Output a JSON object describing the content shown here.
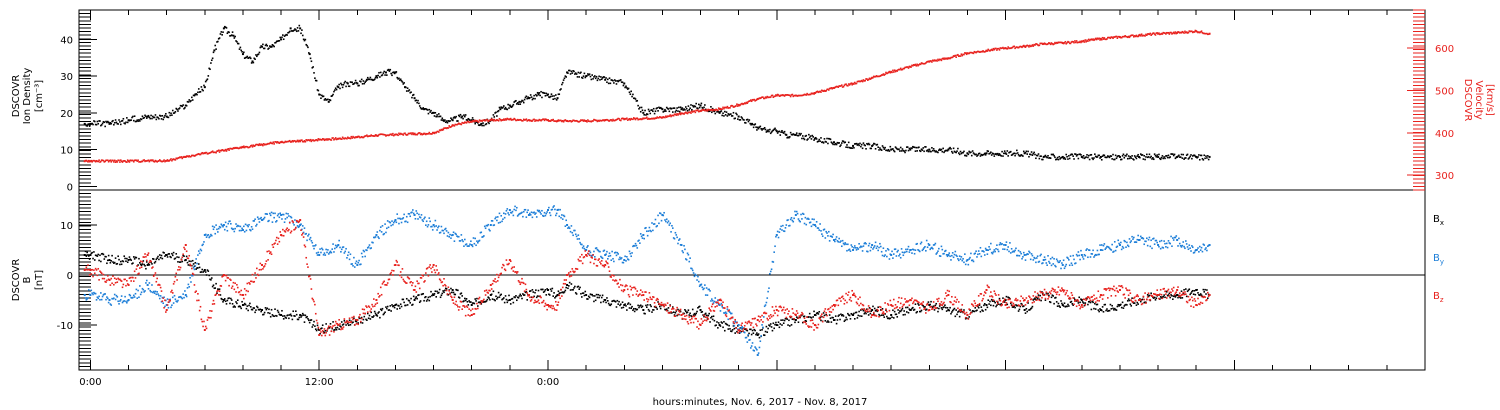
{
  "chart_data": [
    {
      "type": "scatter",
      "panel": "top",
      "x_unit": "hours since 2017-11-06 00:00",
      "ylabel_left": [
        "DSCOVR",
        "Ion Density",
        "[cm⁻³]"
      ],
      "ylabel_right": [
        "DSCOVR",
        "Velocity",
        "[km/s]"
      ],
      "ylim_left": [
        -1,
        48
      ],
      "yticks_left": [
        "0",
        "10",
        "20",
        "30",
        "40"
      ],
      "ylim_right": [
        265,
        690
      ],
      "yticks_right": [
        "300",
        "400",
        "500",
        "600"
      ],
      "series": [
        {
          "name": "Ion Density",
          "axis": "left",
          "color": "#000000",
          "x": [
            -0.3,
            0,
            1,
            2,
            3,
            4,
            5,
            5.5,
            6,
            6.5,
            7,
            7.5,
            8,
            8.5,
            9,
            9.5,
            10,
            10.5,
            11,
            11.5,
            12,
            12.5,
            13,
            13.5,
            14,
            14.5,
            15,
            15.5,
            16,
            16.5,
            17,
            17.5,
            18,
            18.5,
            19,
            19.5,
            20,
            20.5,
            21,
            21.5,
            22,
            22.5,
            23,
            23.5,
            24,
            24.5,
            25,
            26,
            27,
            28,
            29,
            30,
            31,
            32,
            33,
            34,
            34.7,
            35,
            35.5,
            36,
            36.5,
            37,
            38,
            39,
            40,
            41,
            42,
            43,
            44,
            45,
            46,
            47,
            48,
            49,
            50,
            51,
            52,
            53,
            54,
            55,
            56,
            57,
            58,
            58.7
          ],
          "y": [
            17,
            17,
            17,
            18,
            19,
            19,
            22,
            25,
            27,
            37,
            43,
            41,
            36,
            34,
            38,
            38,
            40,
            43,
            43,
            36,
            25,
            23,
            27,
            28,
            28,
            29,
            30,
            31,
            31,
            27,
            24,
            21,
            20,
            18,
            18,
            19,
            18,
            17,
            18,
            21,
            22,
            23,
            24,
            25,
            25,
            24,
            31,
            30,
            29,
            28,
            20,
            21,
            21,
            22,
            20,
            19,
            17,
            16,
            15,
            15,
            14,
            14,
            13,
            12,
            11,
            11,
            10,
            10,
            10,
            10,
            9,
            9,
            9,
            9,
            8,
            8,
            8,
            8,
            8,
            8,
            8,
            8,
            8,
            8
          ]
        },
        {
          "name": "Velocity",
          "axis": "right",
          "color": "#e8221e",
          "x": [
            -0.3,
            0,
            2,
            4,
            5,
            6,
            7,
            8,
            9,
            10,
            11,
            12,
            13,
            14,
            15,
            16,
            17,
            17.5,
            18,
            18.5,
            19,
            20,
            21,
            22,
            23,
            24,
            24.5,
            25,
            26,
            27,
            28,
            29,
            30,
            31,
            32,
            33,
            34,
            35,
            36,
            37,
            38,
            39,
            40,
            41,
            42,
            43,
            44,
            45,
            46,
            47,
            48,
            49,
            50,
            51,
            52,
            53,
            54,
            55,
            56,
            57,
            58,
            58.7
          ],
          "y": [
            333,
            333,
            333,
            334,
            343,
            352,
            358,
            366,
            372,
            378,
            380,
            384,
            386,
            390,
            394,
            396,
            398,
            398,
            400,
            408,
            418,
            426,
            430,
            432,
            430,
            430,
            428,
            428,
            428,
            430,
            432,
            434,
            436,
            446,
            452,
            456,
            466,
            480,
            488,
            488,
            494,
            506,
            516,
            530,
            544,
            556,
            568,
            576,
            588,
            594,
            600,
            604,
            610,
            612,
            616,
            622,
            626,
            630,
            634,
            636,
            640,
            634
          ]
        }
      ]
    },
    {
      "type": "scatter",
      "panel": "bottom",
      "x_unit": "hours since 2017-11-06 00:00",
      "ylabel": [
        "DSCOVR",
        "B",
        "[nT]"
      ],
      "ylim": [
        -19,
        17
      ],
      "yticks": [
        "-10",
        "0",
        "10"
      ],
      "zero_line": true,
      "series": [
        {
          "name": "Bx",
          "color": "#000000",
          "x": [
            -0.3,
            0,
            1,
            2,
            3,
            4,
            5,
            6,
            7,
            8,
            9,
            10,
            11,
            12,
            13,
            14,
            15,
            16,
            17,
            18,
            19,
            20,
            21,
            22,
            23,
            24,
            24.5,
            25,
            26,
            27,
            28,
            29,
            30,
            31,
            32,
            33,
            34,
            35,
            36,
            37,
            38,
            39,
            40,
            41,
            42,
            43,
            44,
            45,
            46,
            47,
            48,
            49,
            50,
            51,
            52,
            53,
            54,
            55,
            56,
            57,
            58,
            58.7
          ],
          "y": [
            4,
            4,
            3,
            3,
            2,
            4,
            3,
            1,
            -5,
            -6,
            -7,
            -8,
            -8,
            -11,
            -10,
            -9,
            -8,
            -6,
            -5,
            -4,
            -3,
            -6,
            -4,
            -5,
            -4,
            -3,
            -4,
            -2,
            -4,
            -5,
            -6,
            -7,
            -6,
            -8,
            -7,
            -10,
            -11,
            -12,
            -10,
            -9,
            -8,
            -9,
            -8,
            -7,
            -8,
            -7,
            -6,
            -7,
            -8,
            -6,
            -5,
            -7,
            -4,
            -6,
            -5,
            -7,
            -6,
            -5,
            -4,
            -4,
            -3,
            -4
          ]
        },
        {
          "name": "By",
          "color": "#1e7fd8",
          "x": [
            -0.3,
            0,
            1,
            2,
            3,
            4,
            5,
            6,
            7,
            8,
            9,
            10,
            11,
            12,
            13,
            14,
            15,
            16,
            17,
            18,
            19,
            20,
            21,
            22,
            23,
            24,
            24.5,
            25,
            26,
            27,
            28,
            29,
            30,
            31,
            32,
            33,
            34,
            35,
            36,
            37,
            38,
            39,
            40,
            41,
            42,
            43,
            44,
            45,
            46,
            47,
            48,
            49,
            50,
            51,
            52,
            53,
            54,
            55,
            56,
            57,
            58,
            58.7
          ],
          "y": [
            -4,
            -4,
            -5,
            -5,
            -2,
            -6,
            -4,
            8,
            10,
            9,
            11,
            12,
            10,
            4,
            6,
            2,
            8,
            11,
            12,
            10,
            8,
            6,
            10,
            13,
            12,
            13,
            13,
            10,
            5,
            4,
            3,
            8,
            12,
            6,
            -2,
            -6,
            -10,
            -16,
            8,
            12,
            10,
            7,
            5,
            6,
            4,
            5,
            6,
            4,
            3,
            5,
            6,
            4,
            3,
            2,
            4,
            5,
            6,
            7,
            6,
            7,
            5,
            6
          ]
        },
        {
          "name": "Bz",
          "color": "#e8221e",
          "x": [
            -0.3,
            0,
            1,
            2,
            3,
            4,
            5,
            6,
            7,
            8,
            9,
            10,
            11,
            12,
            13,
            14,
            15,
            16,
            17,
            18,
            19,
            20,
            21,
            22,
            23,
            24,
            24.5,
            25,
            26,
            27,
            28,
            29,
            30,
            31,
            32,
            33,
            34,
            35,
            36,
            37,
            38,
            39,
            40,
            41,
            42,
            43,
            44,
            45,
            46,
            47,
            48,
            49,
            50,
            51,
            52,
            53,
            54,
            55,
            56,
            57,
            58,
            58.7
          ],
          "y": [
            1,
            1,
            -1,
            -2,
            4,
            -7,
            6,
            -11,
            0,
            -4,
            2,
            8,
            11,
            -12,
            -10,
            -9,
            -5,
            2,
            -3,
            2,
            -5,
            -8,
            -2,
            3,
            -4,
            -6,
            -6,
            0,
            4,
            2,
            -3,
            -4,
            -6,
            -8,
            -10,
            -5,
            -11,
            -9,
            -7,
            -8,
            -10,
            -6,
            -4,
            -8,
            -6,
            -5,
            -7,
            -4,
            -8,
            -3,
            -6,
            -5,
            -4,
            -3,
            -6,
            -4,
            -3,
            -5,
            -4,
            -3,
            -6,
            -4
          ]
        }
      ],
      "legend": [
        {
          "label": "B",
          "sub": "x",
          "color": "#000000"
        },
        {
          "label": "B",
          "sub": "y",
          "color": "#1e7fd8"
        },
        {
          "label": "B",
          "sub": "z",
          "color": "#e8221e"
        }
      ]
    }
  ],
  "x_axis": {
    "xlim": [
      -0.6,
      70
    ],
    "tick_labels": [
      {
        "x": 0,
        "label": "0:00"
      },
      {
        "x": 12,
        "label": "12:00"
      },
      {
        "x": 24,
        "label": "0:00"
      }
    ],
    "xlabel": "hours:minutes, Nov.  6, 2017 - Nov.  8, 2017"
  }
}
